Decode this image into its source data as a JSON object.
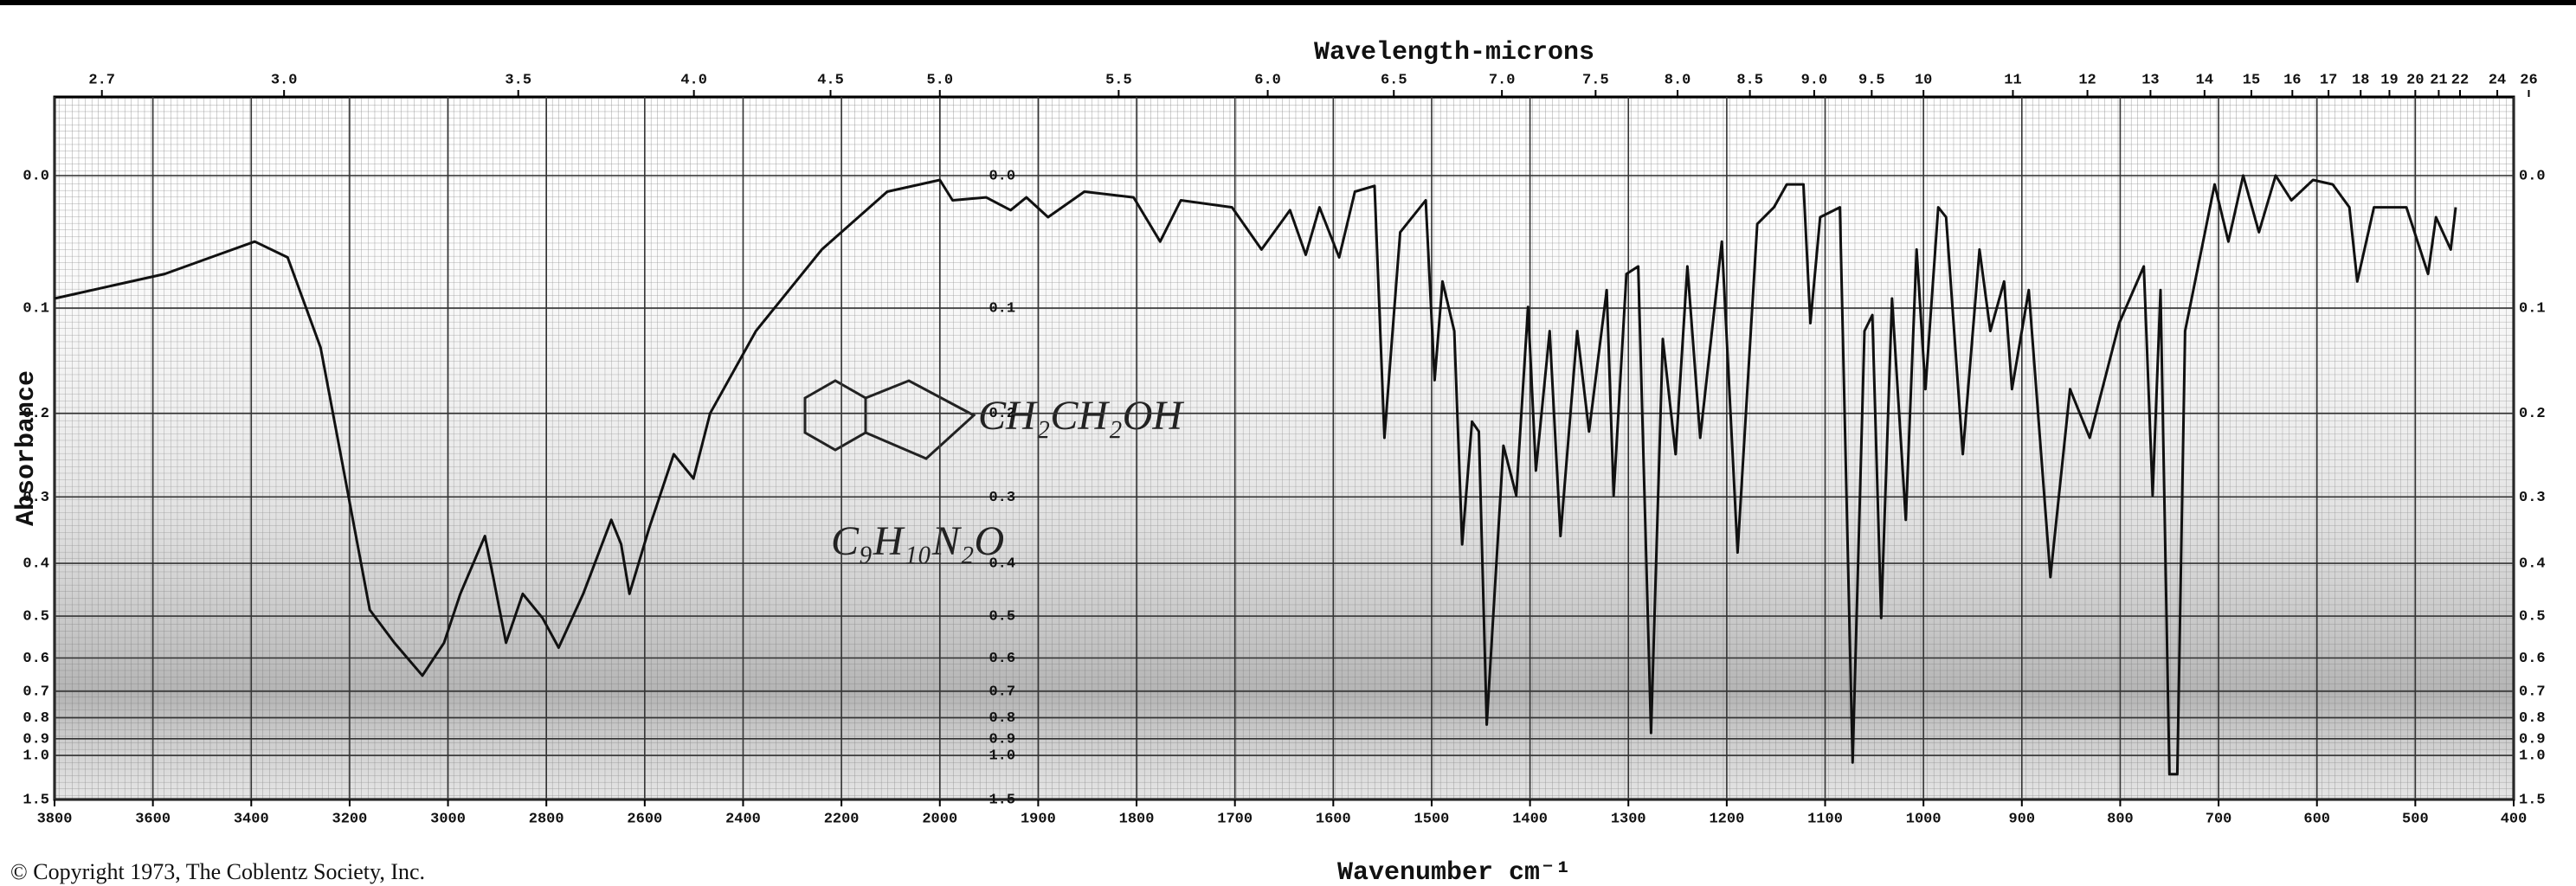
{
  "chart_data": {
    "type": "line",
    "x2label": "Wavelength-microns",
    "xlabel": "Wavenumber cm⁻¹",
    "ylabel": "Absorbance",
    "copyright": "© Copyright 1973, The Coblentz Society, Inc.",
    "annotations": [
      {
        "text": "CH₂CH₂OH"
      },
      {
        "text": "C₉H₁₀N₂O"
      }
    ],
    "color": "#111111",
    "yscale": "transmittance",
    "grid": true,
    "xlim": [
      3800,
      400
    ],
    "xticks": [
      3800,
      3600,
      3400,
      3200,
      3000,
      2800,
      2600,
      2400,
      2200,
      2000,
      1900,
      1800,
      1700,
      1600,
      1500,
      1400,
      1300,
      1200,
      1100,
      1000,
      900,
      800,
      700,
      600,
      500,
      400
    ],
    "x2ticks": [
      2.7,
      {
        "value": 3,
        "label": "3.0"
      },
      3.5,
      {
        "value": 4,
        "label": "4.0"
      },
      4.5,
      {
        "value": 5,
        "label": "5.0"
      },
      5.5,
      {
        "value": 6,
        "label": "6.0"
      },
      6.5,
      {
        "value": 7,
        "label": "7.0"
      },
      7.5,
      {
        "value": 8,
        "label": "8.0"
      },
      8.5,
      {
        "value": 9,
        "label": "9.0"
      },
      9.5,
      10,
      11,
      12,
      13,
      14,
      15,
      16,
      17,
      18,
      19,
      20,
      21,
      22,
      24,
      26
    ],
    "ylim": [
      -0.05,
      1.5
    ],
    "yticks": [
      {
        "value": 0,
        "label": "0.0"
      },
      0.1,
      0.2,
      0.3,
      0.4,
      0.5,
      0.6,
      0.7,
      0.8,
      0.9,
      {
        "value": 1,
        "label": "1.0"
      },
      1.5
    ],
    "x": [
      3800,
      3576,
      3393,
      3326,
      3259,
      3209,
      3159,
      3109,
      3052,
      3008,
      2975,
      2925,
      2908,
      2882,
      2848,
      2808,
      2775,
      2725,
      2668,
      2648,
      2631,
      2591,
      2541,
      2501,
      2467,
      2374,
      2240,
      2107,
      2000,
      1987,
      1953,
      1928,
      1912,
      1890,
      1853,
      1803,
      1776,
      1755,
      1703,
      1673,
      1644,
      1628,
      1614,
      1594,
      1578,
      1558,
      1548,
      1532,
      1506,
      1497,
      1489,
      1477,
      1469,
      1459,
      1452,
      1444,
      1427,
      1414,
      1402,
      1394,
      1380,
      1369,
      1352,
      1340,
      1322,
      1315,
      1302,
      1290,
      1277,
      1265,
      1252,
      1240,
      1227,
      1205,
      1189,
      1169,
      1152,
      1139,
      1122,
      1115,
      1105,
      1085,
      1072,
      1060,
      1052,
      1043,
      1032,
      1018,
      1007,
      998,
      985,
      977,
      960,
      943,
      932,
      918,
      910,
      893,
      871,
      851,
      831,
      801,
      776,
      767,
      759,
      750,
      742,
      734,
      704,
      690,
      675,
      659,
      642,
      626,
      604,
      584,
      567,
      559,
      542,
      509,
      487,
      479,
      464,
      459
    ],
    "values": [
      0.092,
      0.072,
      0.047,
      0.059,
      0.135,
      0.276,
      0.487,
      0.561,
      0.65,
      0.561,
      0.455,
      0.356,
      0.424,
      0.561,
      0.455,
      0.504,
      0.573,
      0.455,
      0.332,
      0.369,
      0.455,
      0.344,
      0.246,
      0.276,
      0.2,
      0.12,
      0.053,
      0.011,
      0.003,
      0.017,
      0.015,
      0.024,
      0.015,
      0.029,
      0.011,
      0.015,
      0.047,
      0.017,
      0.022,
      0.053,
      0.024,
      0.057,
      0.022,
      0.059,
      0.011,
      0.007,
      0.227,
      0.04,
      0.017,
      0.166,
      0.078,
      0.12,
      0.369,
      0.209,
      0.22,
      0.83,
      0.236,
      0.298,
      0.099,
      0.266,
      0.12,
      0.356,
      0.12,
      0.22,
      0.085,
      0.298,
      0.072,
      0.066,
      0.87,
      0.127,
      0.246,
      0.066,
      0.227,
      0.047,
      0.382,
      0.034,
      0.022,
      0.006,
      0.006,
      0.113,
      0.029,
      0.022,
      1.05,
      0.12,
      0.106,
      0.504,
      0.092,
      0.332,
      0.053,
      0.175,
      0.022,
      0.029,
      0.246,
      0.053,
      0.12,
      0.078,
      0.175,
      0.085,
      0.424,
      0.175,
      0.227,
      0.113,
      0.066,
      0.298,
      0.085,
      1.15,
      1.15,
      0.12,
      0.006,
      0.047,
      0,
      0.04,
      0,
      0.017,
      0.003,
      0.006,
      0.022,
      0.078,
      0.022,
      0.022,
      0.072,
      0.029,
      0.053,
      0.022
    ]
  }
}
